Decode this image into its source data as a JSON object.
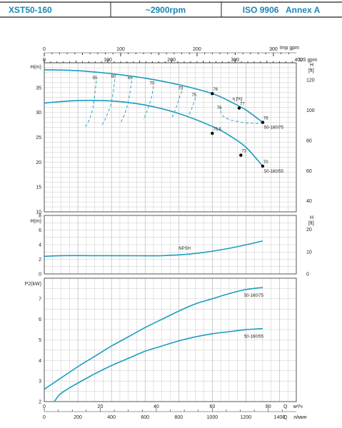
{
  "header": {
    "model": "XST50-160",
    "speed": "~2900rpm",
    "standard": "ISO 9906   Annex A"
  },
  "colors": {
    "curve": "#1a9cc0",
    "grid": "#c8c8c8",
    "grid_major": "#9a9a9a",
    "header_text": "#1a86b5",
    "point": "#000000"
  },
  "chart_data": [
    {
      "type": "line",
      "panel": "head",
      "xlim": [
        0,
        1500
      ],
      "ylim": [
        10,
        40
      ],
      "ylabel": "H(m)",
      "ylabel_right": "H\n[ft]",
      "y_ticks": [
        10,
        15,
        20,
        25,
        30,
        35
      ],
      "y_ticks_right": [
        40,
        60,
        80,
        100,
        120
      ],
      "top_axis_imp": {
        "label": "Imp gpm",
        "ticks": [
          0,
          100,
          200,
          300,
          400
        ]
      },
      "top_axis_us": {
        "label": "US gpm",
        "ticks": [
          0,
          100,
          200,
          300,
          400
        ]
      },
      "top_axis_us_unit": "US gpm",
      "series": [
        {
          "name": "50-160/75",
          "x": [
            0,
            200,
            400,
            600,
            800,
            1000,
            1100,
            1200,
            1300
          ],
          "y": [
            38.6,
            38.4,
            37.8,
            36.9,
            35.6,
            33.8,
            32.3,
            30.5,
            28.0
          ]
        },
        {
          "name": "50-160/55",
          "x": [
            0,
            200,
            400,
            600,
            800,
            1000,
            1100,
            1200,
            1300
          ],
          "y": [
            31.9,
            32.4,
            32.3,
            31.5,
            29.8,
            27.2,
            25.4,
            23.0,
            19.2
          ]
        }
      ],
      "efficiency_label": "η [%]",
      "efficiency_lines": [
        {
          "label": "55",
          "x": [
            310,
            300,
            290,
            270,
            240
          ],
          "y": [
            36.4,
            33.5,
            31.0,
            28.7,
            26.8
          ]
        },
        {
          "label": "60",
          "x": [
            420,
            410,
            395,
            370,
            345
          ],
          "y": [
            36.7,
            34.0,
            31.5,
            29.2,
            27.5
          ]
        },
        {
          "label": "65",
          "x": [
            520,
            510,
            495,
            475,
            455
          ],
          "y": [
            36.4,
            34.0,
            31.5,
            29.4,
            28.0
          ]
        },
        {
          "label": "70",
          "x": [
            650,
            640,
            625,
            605,
            590
          ],
          "y": [
            35.3,
            33.4,
            31.6,
            29.7,
            28.5
          ]
        },
        {
          "label": "73",
          "x": [
            820,
            800,
            785,
            770,
            760
          ],
          "y": [
            34.3,
            32.6,
            31.0,
            29.7,
            29.0
          ]
        },
        {
          "label": "75",
          "x": [
            900,
            880,
            860
          ],
          "y": [
            33.0,
            31.0,
            29.4
          ]
        },
        {
          "label": "76",
          "x": [
            1050,
            1060,
            1100,
            1180,
            1260,
            1300
          ],
          "y": [
            30.4,
            29.4,
            28.6,
            28.0,
            27.8,
            28.0
          ]
        }
      ],
      "points": [
        {
          "x": 1000,
          "y": 33.8,
          "label": "76"
        },
        {
          "x": 1160,
          "y": 30.9,
          "label": "77"
        },
        {
          "x": 1300,
          "y": 28.0,
          "label": "76"
        },
        {
          "x": 1000,
          "y": 25.8,
          "label": "75.5"
        },
        {
          "x": 1170,
          "y": 21.4,
          "label": "73"
        },
        {
          "x": 1300,
          "y": 19.2,
          "label": "70"
        }
      ]
    },
    {
      "type": "line",
      "panel": "npsh",
      "xlim": [
        0,
        1500
      ],
      "ylim": [
        0,
        8
      ],
      "ylabel": "H(m)",
      "ylabel_right": "H\n[ft]",
      "y_ticks": [
        0,
        2,
        4,
        6,
        8
      ],
      "y_ticks_right": [
        0,
        10,
        20
      ],
      "series": [
        {
          "name": "NPSH",
          "x": [
            0,
            100,
            300,
            500,
            700,
            900,
            1100,
            1300
          ],
          "y": [
            2.4,
            2.5,
            2.5,
            2.5,
            2.5,
            2.8,
            3.5,
            4.5
          ]
        }
      ]
    },
    {
      "type": "line",
      "panel": "power",
      "xlim": [
        0,
        1500
      ],
      "ylim": [
        2,
        8
      ],
      "ylabel": "P2(kW)",
      "y_ticks": [
        2,
        3,
        4,
        5,
        6,
        7
      ],
      "x_ticks_m3h": {
        "label": "м³/ч",
        "prefix": "Q",
        "ticks": [
          0,
          20,
          40,
          60,
          80
        ]
      },
      "x_ticks_lmin": {
        "label": "л/мин",
        "prefix": "Q",
        "ticks": [
          0,
          200,
          400,
          600,
          800,
          1000,
          1200,
          1400
        ]
      },
      "series": [
        {
          "name": "50-160/75",
          "x": [
            0,
            100,
            200,
            300,
            400,
            500,
            600,
            700,
            800,
            900,
            1000,
            1100,
            1200,
            1300
          ],
          "y": [
            2.6,
            3.15,
            3.7,
            4.2,
            4.7,
            5.15,
            5.6,
            6.0,
            6.4,
            6.75,
            7.0,
            7.25,
            7.45,
            7.55
          ]
        },
        {
          "name": "50-160/55",
          "x": [
            60,
            100,
            200,
            300,
            400,
            500,
            600,
            700,
            800,
            900,
            1000,
            1100,
            1200,
            1300
          ],
          "y": [
            2.0,
            2.4,
            2.9,
            3.35,
            3.75,
            4.1,
            4.45,
            4.7,
            4.95,
            5.15,
            5.3,
            5.4,
            5.5,
            5.55
          ]
        }
      ]
    }
  ]
}
